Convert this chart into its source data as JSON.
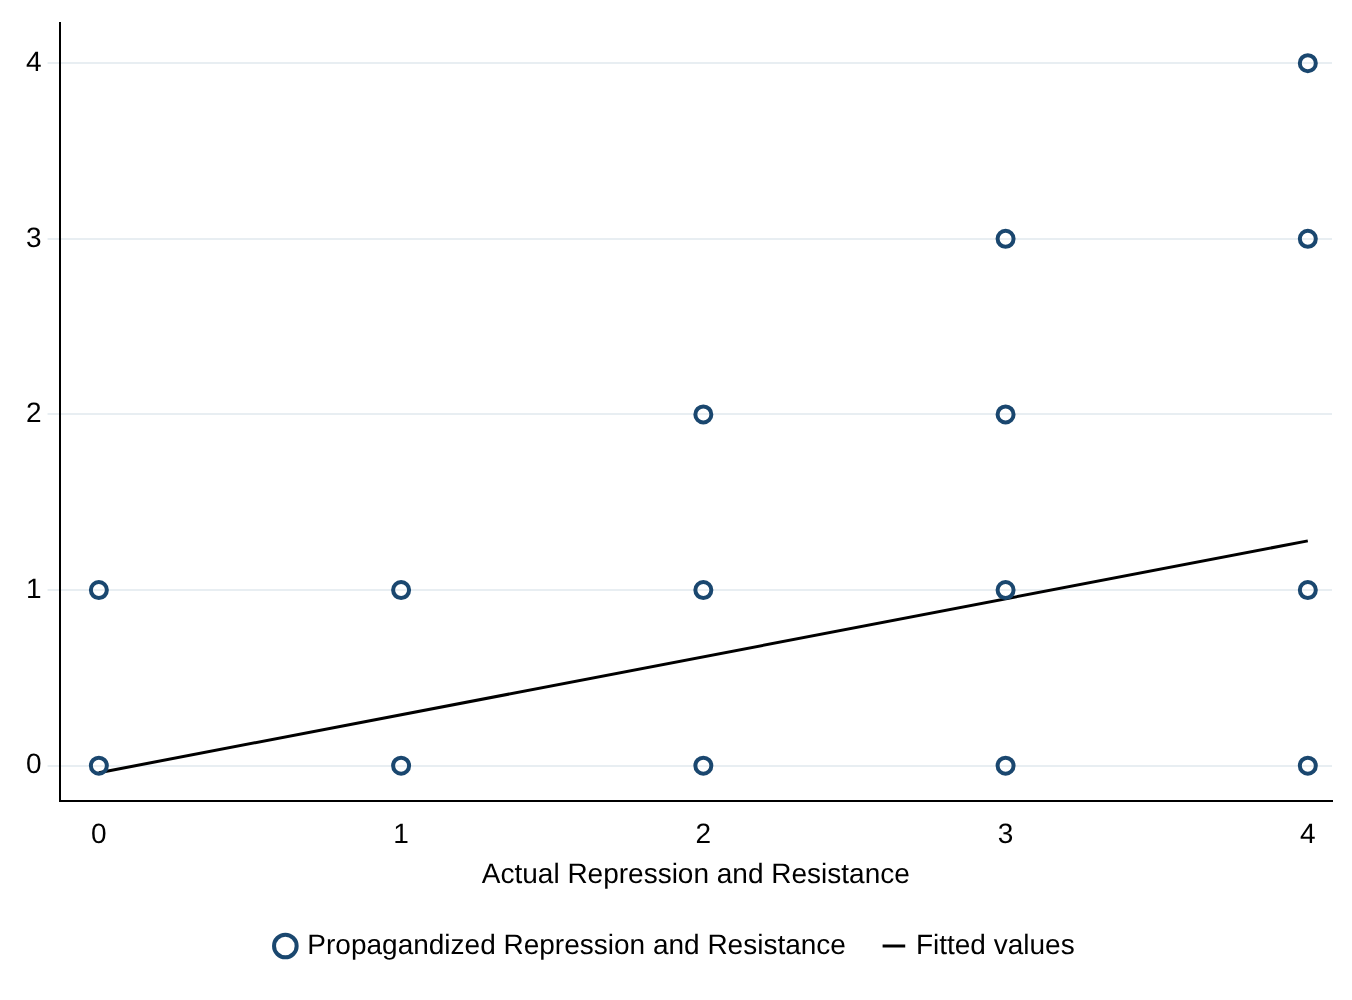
{
  "chart_data": {
    "type": "scatter",
    "xlabel": "Actual Repression and Resistance",
    "xlim": [
      -0.13,
      4.08
    ],
    "xticks": [
      0,
      1,
      2,
      3,
      4
    ],
    "ylim": [
      -0.2,
      4.23
    ],
    "yticks": [
      0,
      1,
      2,
      3,
      4
    ],
    "grid": "y",
    "legend": "bottom",
    "series": [
      {
        "name": "Propagandized Repression and Resistance",
        "marker": "circle",
        "color": "#1a476f",
        "x": [
          0,
          0,
          1,
          1,
          2,
          2,
          2,
          3,
          3,
          3,
          3,
          4,
          4,
          4,
          4
        ],
        "values": [
          0,
          1,
          0,
          1,
          0,
          1,
          2,
          0,
          1,
          2,
          3,
          0,
          1,
          3,
          4
        ]
      },
      {
        "name": "Fitted values",
        "type": "line",
        "marker": "none",
        "color": "#000000",
        "x": [
          0,
          4
        ],
        "values": [
          -0.04,
          1.28
        ]
      }
    ]
  }
}
